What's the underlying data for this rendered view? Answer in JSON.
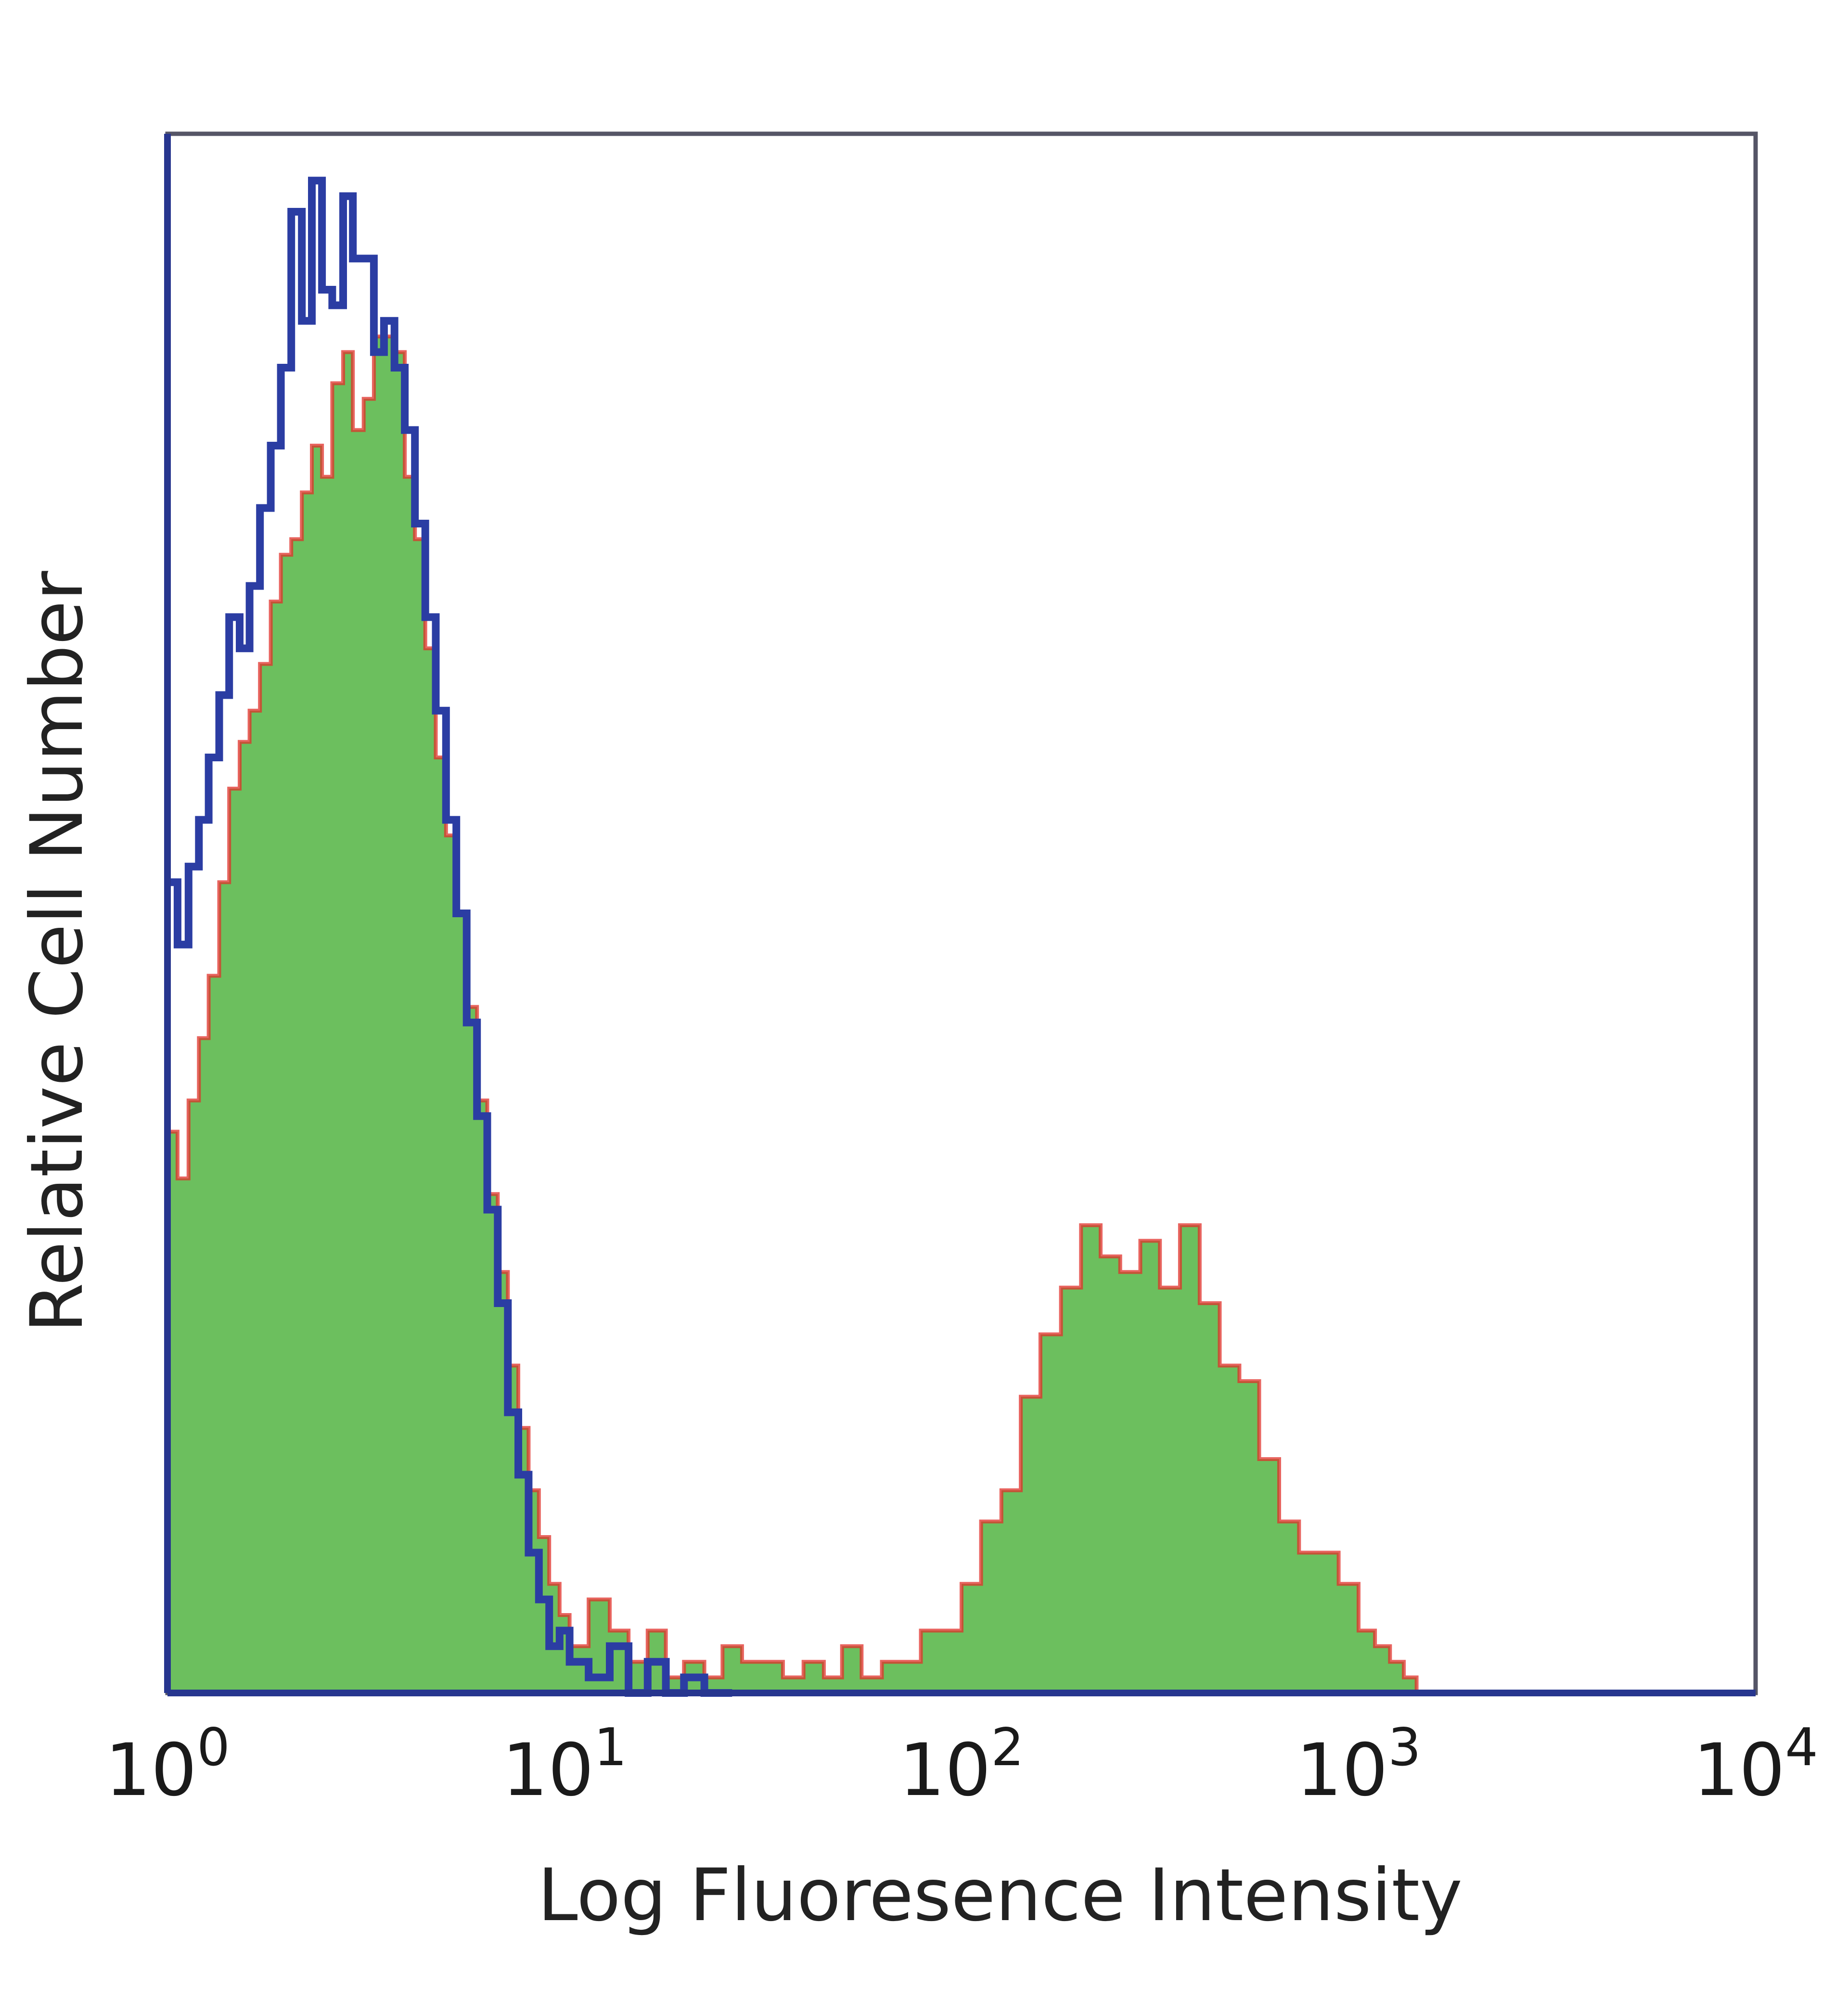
{
  "chart_data": {
    "type": "area",
    "xlabel": "Log Fluoresence Intensity",
    "ylabel": "Relative Cell Number",
    "x_scale": "log",
    "xlim": [
      1,
      10000
    ],
    "ylim": [
      0,
      100
    ],
    "grid": false,
    "x_ticks": [
      {
        "base": "10",
        "exp": "0",
        "value": 1
      },
      {
        "base": "10",
        "exp": "1",
        "value": 10
      },
      {
        "base": "10",
        "exp": "2",
        "value": 100
      },
      {
        "base": "10",
        "exp": "3",
        "value": 1000
      },
      {
        "base": "10",
        "exp": "4",
        "value": 10000
      }
    ],
    "series": [
      {
        "style": "filled",
        "color": "#6cbf5e",
        "edge_color": "#e0302a",
        "x": [
          1.0,
          1.06,
          1.13,
          1.2,
          1.27,
          1.35,
          1.43,
          1.52,
          1.61,
          1.71,
          1.82,
          1.93,
          2.05,
          2.18,
          2.31,
          2.45,
          2.6,
          2.77,
          2.93,
          3.12,
          3.31,
          3.51,
          3.73,
          3.96,
          4.2,
          4.46,
          4.74,
          5.03,
          5.34,
          5.67,
          6.02,
          6.39,
          6.79,
          7.2,
          7.65,
          8.12,
          8.62,
          9.15,
          9.72,
          10.3,
          11.5,
          13.0,
          14.5,
          16.2,
          18.0,
          20.0,
          22.5,
          25.0,
          28.0,
          31.6,
          35.5,
          40.0,
          45.0,
          50.0,
          56.0,
          63.0,
          70.0,
          79.0,
          89.0,
          100.0,
          112.0,
          126.0,
          141.0,
          158.0,
          178.0,
          200.0,
          224.0,
          251.0,
          282.0,
          316.0,
          355.0,
          398.0,
          447.0,
          501.0,
          562.0,
          631.0,
          708.0,
          794.0,
          891.0,
          1000.0,
          1100.0,
          1200.0,
          1300.0,
          1400.0
        ],
        "y": [
          36,
          33,
          38,
          42,
          46,
          52,
          58,
          61,
          63,
          66,
          70,
          73,
          74,
          77,
          80,
          78,
          84,
          86,
          81,
          83,
          87,
          87,
          86,
          78,
          74,
          67,
          60,
          55,
          50,
          44,
          38,
          32,
          27,
          21,
          17,
          13,
          10,
          7,
          5,
          3,
          6,
          4,
          2,
          4,
          1,
          2,
          1,
          3,
          2,
          2,
          1,
          2,
          1,
          3,
          1,
          2,
          2,
          4,
          4,
          7,
          11,
          13,
          19,
          23,
          26,
          30,
          28,
          27,
          29,
          26,
          30,
          25,
          21,
          20,
          15,
          11,
          9,
          9,
          7,
          4,
          3,
          2,
          1,
          0
        ]
      },
      {
        "style": "outline",
        "color": "#2b3da3",
        "x": [
          1.0,
          1.06,
          1.13,
          1.2,
          1.27,
          1.35,
          1.43,
          1.52,
          1.61,
          1.71,
          1.82,
          1.93,
          2.05,
          2.18,
          2.31,
          2.45,
          2.6,
          2.77,
          2.93,
          3.12,
          3.31,
          3.51,
          3.73,
          3.96,
          4.2,
          4.46,
          4.74,
          5.03,
          5.34,
          5.67,
          6.02,
          6.39,
          6.79,
          7.2,
          7.65,
          8.12,
          8.62,
          9.15,
          9.72,
          10.3,
          11.5,
          13.0,
          14.5,
          16.2,
          18.0,
          20.0,
          22.5,
          25.0
        ],
        "y": [
          52,
          48,
          53,
          56,
          60,
          64,
          69,
          67,
          71,
          76,
          80,
          85,
          95,
          88,
          97,
          90,
          89,
          96,
          92,
          92,
          86,
          88,
          85,
          81,
          75,
          69,
          63,
          56,
          50,
          43,
          37,
          31,
          25,
          18,
          14,
          9,
          6,
          3,
          4,
          2,
          1,
          3,
          0,
          2,
          0,
          1,
          0,
          0
        ]
      }
    ]
  }
}
